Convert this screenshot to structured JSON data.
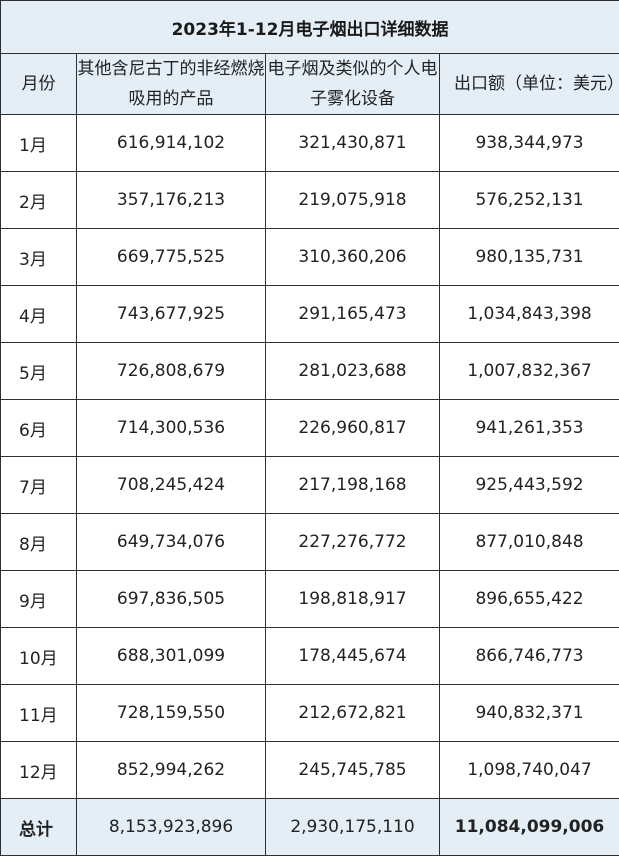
{
  "title": "2023年1-12月电子烟出口详细数据",
  "headers": {
    "month": "月份",
    "col1": "其他含尼古丁的非经燃烧吸用的产品",
    "col2": "电子烟及类似的个人电子雾化设备",
    "col3": "出口额（单位：美元）"
  },
  "rows": [
    {
      "month": "1月",
      "c1": "616,914,102",
      "c2": "321,430,871",
      "c3": "938,344,973"
    },
    {
      "month": "2月",
      "c1": "357,176,213",
      "c2": "219,075,918",
      "c3": "576,252,131"
    },
    {
      "month": "3月",
      "c1": "669,775,525",
      "c2": "310,360,206",
      "c3": "980,135,731"
    },
    {
      "month": "4月",
      "c1": "743,677,925",
      "c2": "291,165,473",
      "c3": "1,034,843,398"
    },
    {
      "month": "5月",
      "c1": "726,808,679",
      "c2": "281,023,688",
      "c3": "1,007,832,367"
    },
    {
      "month": "6月",
      "c1": "714,300,536",
      "c2": "226,960,817",
      "c3": "941,261,353"
    },
    {
      "month": "7月",
      "c1": "708,245,424",
      "c2": "217,198,168",
      "c3": "925,443,592"
    },
    {
      "month": "8月",
      "c1": "649,734,076",
      "c2": "227,276,772",
      "c3": "877,010,848"
    },
    {
      "month": "9月",
      "c1": "697,836,505",
      "c2": "198,818,917",
      "c3": "896,655,422"
    },
    {
      "month": "10月",
      "c1": "688,301,099",
      "c2": "178,445,674",
      "c3": "866,746,773"
    },
    {
      "month": "11月",
      "c1": "728,159,550",
      "c2": "212,672,821",
      "c3": "940,832,371"
    },
    {
      "month": "12月",
      "c1": "852,994,262",
      "c2": "245,745,785",
      "c3": "1,098,740,047"
    }
  ],
  "total": {
    "label": "总计",
    "c1": "8,153,923,896",
    "c2": "2,930,175,110",
    "c3": "11,084,099,006"
  },
  "colors": {
    "header_bg": "#e3eef7",
    "border": "#2f2f2f"
  }
}
